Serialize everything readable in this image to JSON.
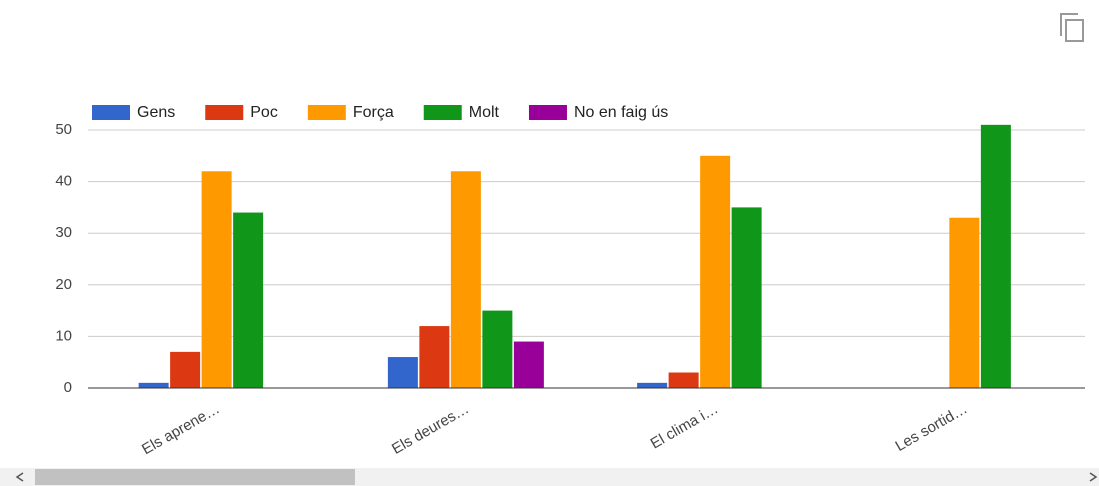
{
  "chart_data": {
    "type": "bar",
    "categories": [
      "Els aprene…",
      "Els deures…",
      "El clima i…",
      "Les sortid…"
    ],
    "series": [
      {
        "name": "Gens",
        "color": "#3366cc",
        "values": [
          1,
          6,
          1,
          0
        ]
      },
      {
        "name": "Poc",
        "color": "#dc3912",
        "values": [
          7,
          12,
          3,
          0
        ]
      },
      {
        "name": "Força",
        "color": "#ff9900",
        "values": [
          42,
          42,
          45,
          33
        ]
      },
      {
        "name": "Molt",
        "color": "#109618",
        "values": [
          34,
          15,
          35,
          51
        ]
      },
      {
        "name": "No en faig ús",
        "color": "#990099",
        "values": [
          0,
          9,
          0,
          0
        ]
      }
    ],
    "ylim": [
      0,
      50
    ],
    "yticks": [
      0,
      10,
      20,
      30,
      40,
      50
    ],
    "grid": true,
    "legend": "top"
  }
}
